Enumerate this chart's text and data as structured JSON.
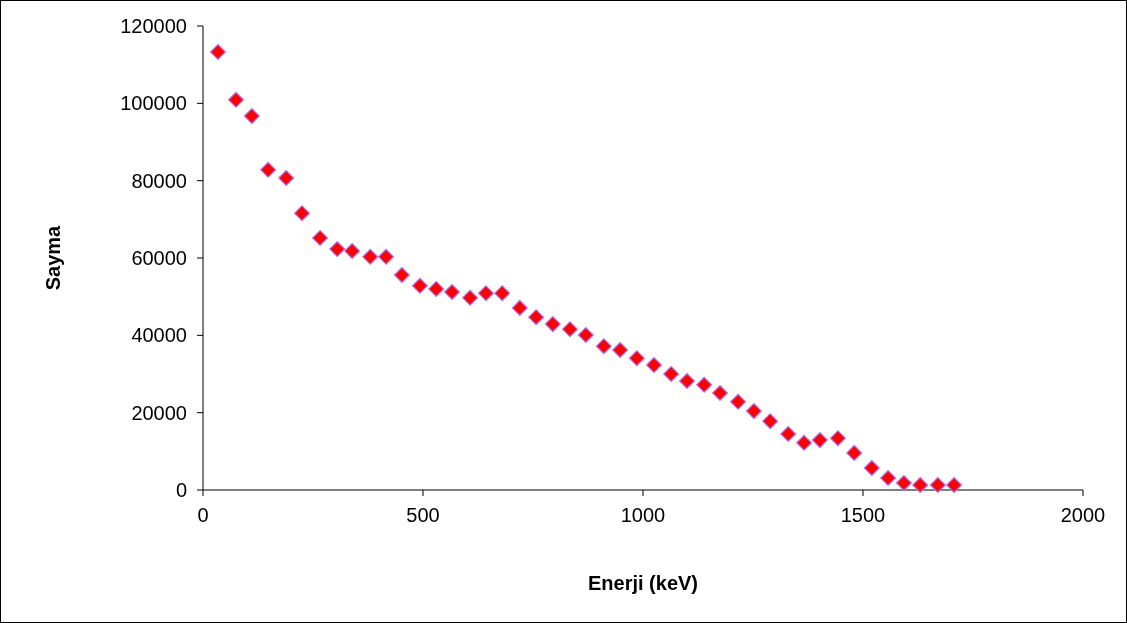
{
  "chart_data": {
    "type": "scatter",
    "xlabel": "Enerji (keV)",
    "ylabel": "Sayma",
    "x": [
      34,
      75,
      111,
      148,
      189,
      225,
      266,
      305,
      339,
      380,
      416,
      452,
      493,
      530,
      566,
      607,
      643,
      680,
      720,
      757,
      795,
      834,
      870,
      911,
      948,
      986,
      1025,
      1064,
      1100,
      1139,
      1175,
      1216,
      1252,
      1289,
      1330,
      1366,
      1402,
      1443,
      1480,
      1520,
      1557,
      1593,
      1630,
      1670,
      1707
    ],
    "series": [
      {
        "color": "#ff0000",
        "values": [
          113300,
          100900,
          96700,
          82800,
          80700,
          71600,
          65200,
          62300,
          61800,
          60300,
          60300,
          55600,
          52800,
          52000,
          51200,
          49700,
          50900,
          50900,
          47100,
          44700,
          42900,
          41600,
          40100,
          37200,
          36200,
          34100,
          32300,
          30000,
          28200,
          27200,
          25100,
          22800,
          20400,
          17800,
          14500,
          12200,
          12900,
          13400,
          9600,
          5700,
          3100,
          1800,
          1300,
          1300,
          1300
        ]
      }
    ],
    "xlim": [
      0,
      2000
    ],
    "xticks": [
      0,
      500,
      1000,
      1500,
      2000
    ],
    "ylim": [
      0,
      120000
    ],
    "yticks": [
      0,
      20000,
      40000,
      60000,
      80000,
      100000,
      120000
    ],
    "marker": "diamond",
    "grid": false
  }
}
